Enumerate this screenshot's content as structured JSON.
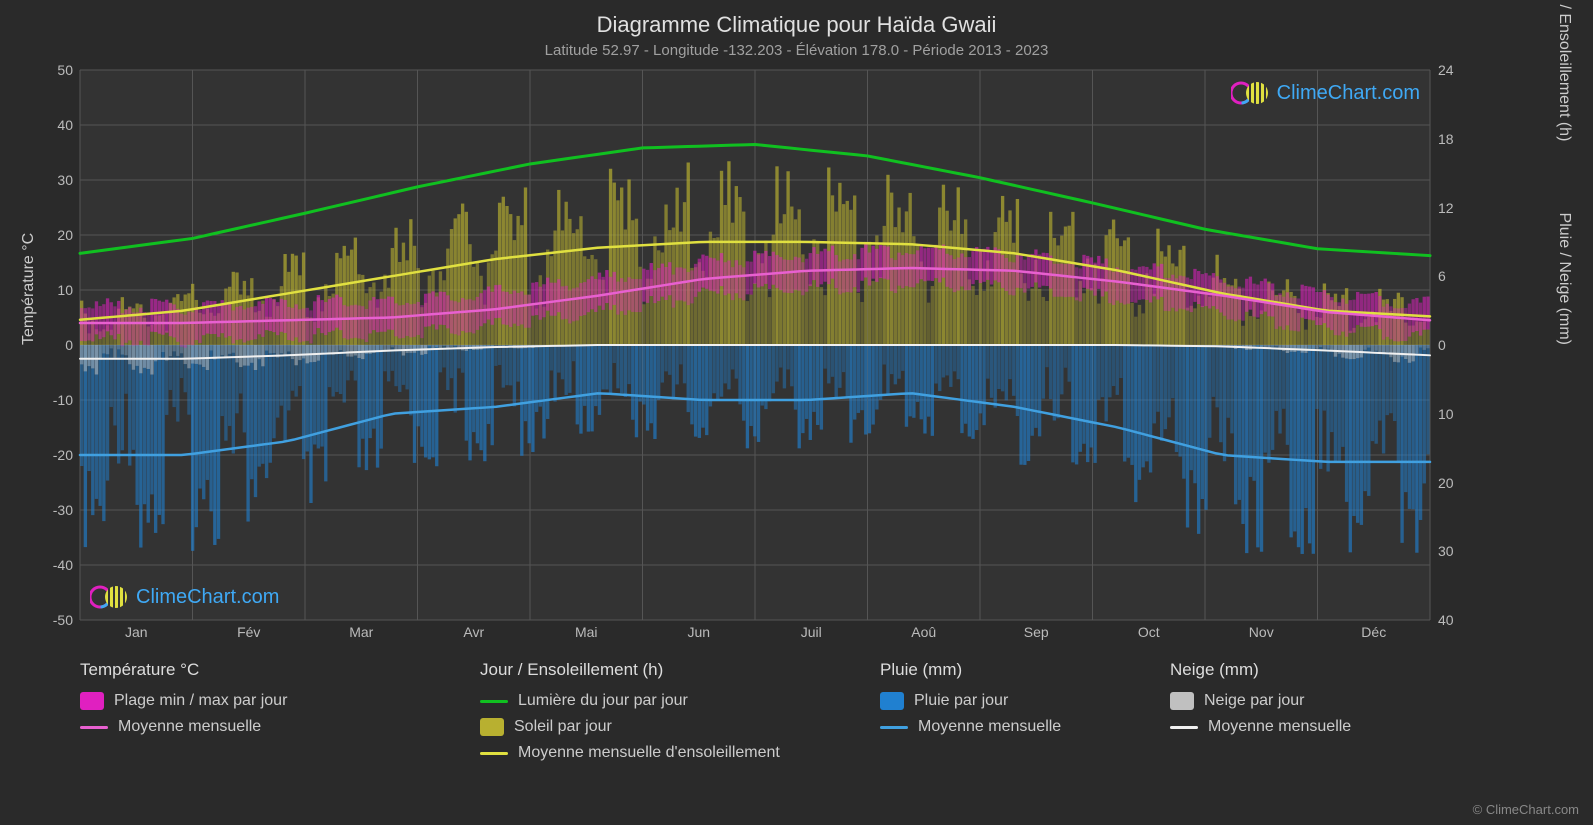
{
  "title": "Diagramme Climatique pour Haïda Gwaii",
  "subtitle": "Latitude 52.97 - Longitude -132.203 - Élévation 178.0 - Période 2013 - 2023",
  "watermark_text": "ClimeChart.com",
  "copyright": "© ClimeChart.com",
  "background_color": "#2a2a2a",
  "plot_background": "#333333",
  "grid_color": "#555555",
  "text_color": "#cccccc",
  "axis_left": {
    "label": "Température °C",
    "min": -50,
    "max": 50,
    "ticks": [
      -50,
      -40,
      -30,
      -20,
      -10,
      0,
      10,
      20,
      30,
      40,
      50
    ]
  },
  "axis_right_top": {
    "label": "Jour / Ensoleillement (h)",
    "min": 0,
    "max": 24,
    "ticks": [
      0,
      6,
      12,
      18,
      24
    ]
  },
  "axis_right_bottom": {
    "label": "Pluie / Neige (mm)",
    "min": 0,
    "max": 40,
    "ticks": [
      0,
      10,
      20,
      30,
      40
    ]
  },
  "months": [
    "Jan",
    "Fév",
    "Mar",
    "Avr",
    "Mai",
    "Jun",
    "Juil",
    "Aoû",
    "Sep",
    "Oct",
    "Nov",
    "Déc"
  ],
  "colors": {
    "temp_range": "#e020c0",
    "temp_avg": "#e860d0",
    "daylight": "#10c020",
    "sunshine_bar": "#b8b030",
    "sunshine_avg": "#e0e040",
    "rain_bar": "#2080d0",
    "rain_avg": "#40a0e0",
    "snow_bar": "#c0c0c0",
    "snow_avg": "#f0f0f0"
  },
  "series": {
    "daylight_h": [
      8.0,
      9.3,
      11.5,
      13.8,
      15.8,
      17.2,
      17.5,
      16.5,
      14.6,
      12.4,
      10.1,
      8.4,
      7.8
    ],
    "sunshine_avg_h": [
      2.2,
      3.0,
      4.5,
      6.0,
      7.5,
      8.5,
      9.0,
      9.0,
      8.8,
      8.0,
      6.5,
      4.5,
      3.0,
      2.5
    ],
    "temp_avg_c": [
      4.0,
      4.0,
      4.5,
      5.0,
      6.5,
      9.0,
      12.0,
      13.5,
      14.0,
      13.5,
      11.5,
      9.0,
      6.0,
      4.5
    ],
    "temp_min_c": [
      1.0,
      1.0,
      1.5,
      2.0,
      3.5,
      6.0,
      9.0,
      10.5,
      11.0,
      10.5,
      8.5,
      6.0,
      3.0,
      1.5
    ],
    "temp_max_c": [
      7.0,
      7.0,
      7.5,
      8.0,
      9.5,
      12.0,
      15.0,
      16.5,
      17.0,
      16.5,
      14.5,
      12.0,
      9.0,
      7.5
    ],
    "rain_avg_mm": [
      16.0,
      16.0,
      14.0,
      10.0,
      9.0,
      7.0,
      8.0,
      8.0,
      7.0,
      9.0,
      12.0,
      16.0,
      17.0,
      17.0
    ],
    "snow_avg_mm": [
      2.0,
      2.0,
      1.5,
      0.8,
      0.3,
      0.0,
      0.0,
      0.0,
      0.0,
      0.0,
      0.0,
      0.2,
      0.8,
      1.5
    ]
  },
  "legend": {
    "temp": {
      "header": "Température °C",
      "range_label": "Plage min / max par jour",
      "avg_label": "Moyenne mensuelle"
    },
    "day": {
      "header": "Jour / Ensoleillement (h)",
      "daylight_label": "Lumière du jour par jour",
      "sunshine_label": "Soleil par jour",
      "sunshine_avg_label": "Moyenne mensuelle d'ensoleillement"
    },
    "rain": {
      "header": "Pluie (mm)",
      "rain_label": "Pluie par jour",
      "rain_avg_label": "Moyenne mensuelle"
    },
    "snow": {
      "header": "Neige (mm)",
      "snow_label": "Neige par jour",
      "snow_avg_label": "Moyenne mensuelle"
    }
  }
}
